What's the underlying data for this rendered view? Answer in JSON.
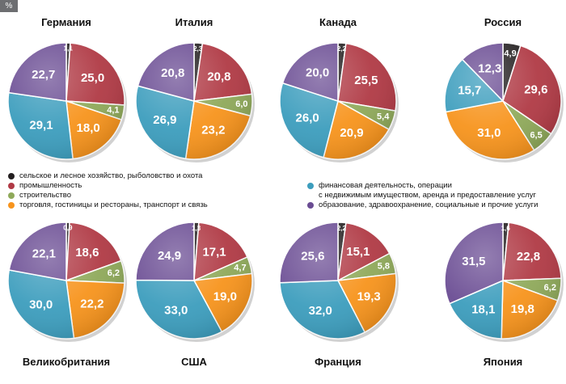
{
  "unit_label": "%",
  "colors": {
    "agriculture": "#231f20",
    "industry": "#b03a45",
    "construction": "#8fa95a",
    "trade": "#f7941d",
    "finance": "#3c9dbd",
    "education": "#6a4c93"
  },
  "legend": [
    {
      "key": "agriculture",
      "label": "сельское и лесное хозяйство, рыболовство и охота"
    },
    {
      "key": "industry",
      "label": "промышленность"
    },
    {
      "key": "construction",
      "label": "строительство"
    },
    {
      "key": "trade",
      "label": "торговля, гостиницы и рестораны, транспорт и связь"
    },
    {
      "key": "finance",
      "label": "финансовая деятельность, операции\nс недвижимым имуществом, аренда и предоставление услуг"
    },
    {
      "key": "education",
      "label": "образование, здравоохранение, социальные и прочие услуги"
    }
  ],
  "chart_data": [
    {
      "type": "pie",
      "title": "Германия",
      "values": [
        1.1,
        25.0,
        4.1,
        18.0,
        29.1,
        22.7
      ],
      "labels": [
        "1,1",
        "25,0",
        "4,1",
        "18,0",
        "29,1",
        "22,7"
      ]
    },
    {
      "type": "pie",
      "title": "Италия",
      "values": [
        2.3,
        20.8,
        6.0,
        23.2,
        26.9,
        20.8
      ],
      "labels": [
        "2,3",
        "20,8",
        "6,0",
        "23,2",
        "26,9",
        "20,8"
      ]
    },
    {
      "type": "pie",
      "title": "Канада",
      "values": [
        2.2,
        25.5,
        5.4,
        20.9,
        26.0,
        20.0
      ],
      "labels": [
        "2,2",
        "25,5",
        "5,4",
        "20,9",
        "26,0",
        "20,0"
      ]
    },
    {
      "type": "pie",
      "title": "Россия",
      "values": [
        4.9,
        29.6,
        6.5,
        31.0,
        15.7,
        12.3
      ],
      "labels": [
        "4,9",
        "29,6",
        "6,5",
        "31,0",
        "15,7",
        "12,3"
      ]
    },
    {
      "type": "pie",
      "title": "Великобритания",
      "values": [
        0.9,
        18.6,
        6.2,
        22.2,
        30.0,
        22.1
      ],
      "labels": [
        "0,9",
        "18,6",
        "6,2",
        "22,2",
        "30,0",
        "22,1"
      ]
    },
    {
      "type": "pie",
      "title": "США",
      "values": [
        1.3,
        17.1,
        4.7,
        19.0,
        33.0,
        24.9
      ],
      "labels": [
        "1,3",
        "17,1",
        "4,7",
        "19,0",
        "33,0",
        "24,9"
      ]
    },
    {
      "type": "pie",
      "title": "Франция",
      "values": [
        2.2,
        15.1,
        5.8,
        19.3,
        32.0,
        25.6
      ],
      "labels": [
        "2,2",
        "15,1",
        "5,8",
        "19,3",
        "32,0",
        "25,6"
      ]
    },
    {
      "type": "pie",
      "title": "Япония",
      "values": [
        1.6,
        22.8,
        6.2,
        19.8,
        18.1,
        31.5
      ],
      "labels": [
        "1,6",
        "22,8",
        "6,2",
        "19,8",
        "18,1",
        "31,5"
      ]
    }
  ]
}
